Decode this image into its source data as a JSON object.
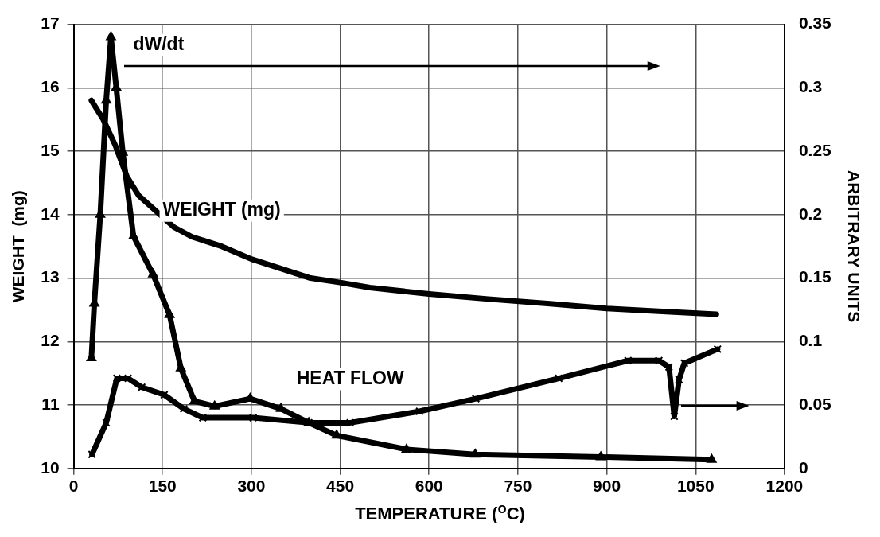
{
  "chart_data": {
    "type": "line",
    "xlabel": "TEMPERATURE ($^{o}$C)",
    "ylabel": "WEIGHT  (mg)",
    "y2label": "ARBITRARY UNITS",
    "xlim": [
      0,
      1200
    ],
    "xticks": [
      0,
      150,
      300,
      450,
      600,
      750,
      900,
      1050,
      1200
    ],
    "ylim": [
      10,
      17
    ],
    "yticks": [
      10,
      11,
      12,
      13,
      14,
      15,
      16,
      17
    ],
    "y2lim": [
      0,
      0.35
    ],
    "y2ticks": [
      0,
      0.05,
      0.1,
      0.15,
      0.2,
      0.25,
      0.3,
      0.35
    ],
    "grid": true,
    "legend": false,
    "series": [
      {
        "name": "WEIGHT (mg)",
        "color": "#000000",
        "marker": "none",
        "x": [
          30,
          50,
          70,
          90,
          110,
          140,
          170,
          200,
          250,
          300,
          350,
          400,
          450,
          500,
          600,
          700,
          800,
          900,
          1000,
          1085
        ],
        "values": [
          15.8,
          15.5,
          15.1,
          14.6,
          14.3,
          14.05,
          13.8,
          13.65,
          13.5,
          13.3,
          13.15,
          13.0,
          12.93,
          12.85,
          12.75,
          12.67,
          12.6,
          12.52,
          12.47,
          12.43
        ]
      },
      {
        "name": "dW/dt",
        "color": "#000000",
        "marker": "triangle",
        "axis": "y2",
        "x": [
          30,
          35,
          45,
          55,
          63,
          72,
          83,
          101,
          134,
          162,
          181,
          204,
          238,
          298,
          350,
          397,
          444,
          562,
          678,
          890,
          1077
        ],
        "values": [
          0.087,
          0.13,
          0.2,
          0.29,
          0.34,
          0.3,
          0.249,
          0.183,
          0.153,
          0.121,
          0.079,
          0.053,
          0.049,
          0.055,
          0.047,
          0.036,
          0.026,
          0.015,
          0.011,
          0.009,
          0.007
        ]
      },
      {
        "name": "HEAT FLOW",
        "color": "#000000",
        "marker": "cross",
        "axis": "y2",
        "x": [
          31,
          55,
          73,
          92,
          115,
          153,
          186,
          218,
          303,
          397,
          467,
          584,
          679,
          819,
          936,
          988,
          1005,
          1014,
          1022,
          1031,
          1087
        ],
        "values": [
          0.011,
          0.036,
          0.071,
          0.071,
          0.064,
          0.058,
          0.047,
          0.04,
          0.04,
          0.036,
          0.036,
          0.045,
          0.055,
          0.071,
          0.085,
          0.085,
          0.08,
          0.041,
          0.07,
          0.083,
          0.094
        ]
      }
    ]
  }
}
